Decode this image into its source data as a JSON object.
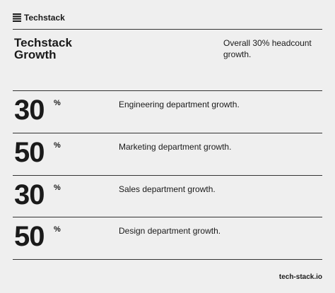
{
  "header": {
    "brand": "Techstack"
  },
  "title_lines": [
    "Techstack",
    "Growth"
  ],
  "subtitle": "Overall 30% headcount growth.",
  "rows": [
    {
      "value": 30,
      "unit": "%",
      "label": "Engineering department growth."
    },
    {
      "value": 50,
      "unit": "%",
      "label": "Marketing department growth."
    },
    {
      "value": 30,
      "unit": "%",
      "label": "Sales department growth."
    },
    {
      "value": 50,
      "unit": "%",
      "label": "Design department growth."
    }
  ],
  "footer": "tech-stack.io"
}
